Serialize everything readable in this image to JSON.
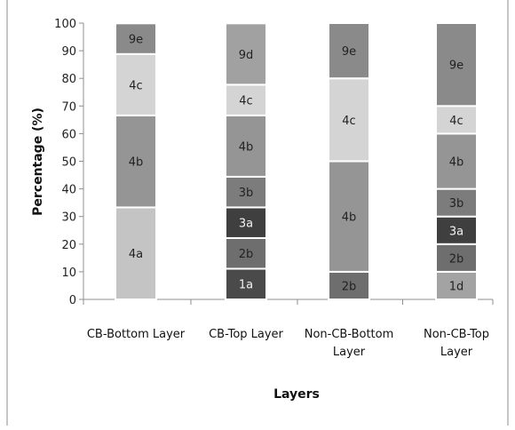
{
  "chart_data": {
    "type": "bar",
    "stacked": true,
    "title": "",
    "xlabel": "Layers",
    "ylabel": "Percentage (%)",
    "ylim": [
      0,
      100
    ],
    "yticks": [
      0,
      10,
      20,
      30,
      40,
      50,
      60,
      70,
      80,
      90,
      100
    ],
    "grid": false,
    "legend": "none",
    "categories": [
      [
        "CB-Bottom Layer"
      ],
      [
        "CB-Top Layer"
      ],
      [
        "Non-CB-Bottom",
        "Layer"
      ],
      [
        "Non-CB-Top",
        "Layer"
      ]
    ],
    "stacks": [
      [
        {
          "label": "4a",
          "value": 33.3
        },
        {
          "label": "4b",
          "value": 33.3
        },
        {
          "label": "4c",
          "value": 22.2
        },
        {
          "label": "9e",
          "value": 11.1
        }
      ],
      [
        {
          "label": "1a",
          "value": 11.1
        },
        {
          "label": "2b",
          "value": 11.1
        },
        {
          "label": "3a",
          "value": 11.1
        },
        {
          "label": "3b",
          "value": 11.1
        },
        {
          "label": "4b",
          "value": 22.2
        },
        {
          "label": "4c",
          "value": 11.1
        },
        {
          "label": "9d",
          "value": 22.2
        }
      ],
      [
        {
          "label": "2b",
          "value": 10
        },
        {
          "label": "4b",
          "value": 40
        },
        {
          "label": "4c",
          "value": 30
        },
        {
          "label": "9e",
          "value": 20
        }
      ],
      [
        {
          "label": "1d",
          "value": 10
        },
        {
          "label": "2b",
          "value": 10
        },
        {
          "label": "3a",
          "value": 10
        },
        {
          "label": "3b",
          "value": 10
        },
        {
          "label": "4b",
          "value": 20
        },
        {
          "label": "4c",
          "value": 10
        },
        {
          "label": "9e",
          "value": 30
        }
      ]
    ],
    "segment_colors": {
      "1a": "#4a4a4a",
      "1d": "#a3a3a3",
      "2b": "#6e6e6e",
      "3a": "#3f3f3f",
      "3b": "#7c7c7c",
      "4a": "#c4c4c4",
      "4b": "#959595",
      "4c": "#d4d4d4",
      "9d": "#a1a1a1",
      "9e": "#8a8a8a"
    },
    "dark_segments": [
      "1a",
      "3a"
    ]
  }
}
